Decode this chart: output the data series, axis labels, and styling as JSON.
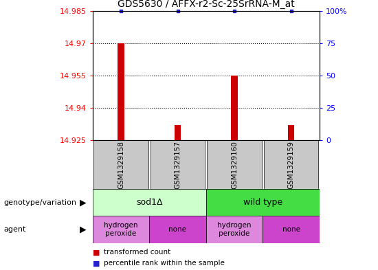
{
  "title": "GDS5630 / AFFX-r2-Sc-25SrRNA-M_at",
  "samples": [
    "GSM1329158",
    "GSM1329157",
    "GSM1329160",
    "GSM1329159"
  ],
  "bar_values": [
    14.97,
    14.932,
    14.955,
    14.932
  ],
  "percentile_dots": [
    14.985,
    14.985,
    14.985,
    14.985
  ],
  "ylim": [
    14.925,
    14.985
  ],
  "yticks": [
    14.985,
    14.97,
    14.955,
    14.94,
    14.925
  ],
  "ytick_labels": [
    "14.985",
    "14.97",
    "14.955",
    "14.94",
    "14.925"
  ],
  "right_yticks": [
    100,
    75,
    50,
    25,
    0
  ],
  "right_ytick_labels": [
    "100%",
    "75",
    "50",
    "25",
    "0"
  ],
  "bar_color": "#cc0000",
  "dot_color": "#2222cc",
  "genotype_groups": [
    {
      "label": "sod1Δ",
      "span": [
        0,
        2
      ],
      "color": "#ccffcc"
    },
    {
      "label": "wild type",
      "span": [
        2,
        4
      ],
      "color": "#44dd44"
    }
  ],
  "agent_groups": [
    {
      "label": "hydrogen\nperoxide",
      "span": [
        0,
        1
      ],
      "color": "#dd88dd"
    },
    {
      "label": "none",
      "span": [
        1,
        2
      ],
      "color": "#cc44cc"
    },
    {
      "label": "hydrogen\nperoxide",
      "span": [
        2,
        3
      ],
      "color": "#dd88dd"
    },
    {
      "label": "none",
      "span": [
        3,
        4
      ],
      "color": "#cc44cc"
    }
  ],
  "legend_items": [
    {
      "label": "transformed count",
      "color": "#cc0000"
    },
    {
      "label": "percentile rank within the sample",
      "color": "#2222cc"
    }
  ],
  "left_label": "genotype/variation",
  "agent_label": "agent",
  "sample_box_color": "#c8c8c8",
  "bar_width": 0.12
}
